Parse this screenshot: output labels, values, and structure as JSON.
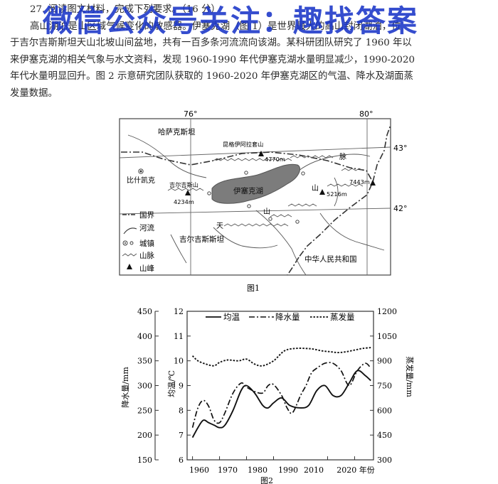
{
  "question": {
    "header": "27. 阅读图文材料，完成下列要求。（16 分）",
    "lines": [
      "高山湖泊是山区域气候变化的敏感器。伊塞克湖（图 1）是世界最大的高山封闭湖泊，位",
      "于吉尔吉斯斯坦天山北坡山间盆地，共有一百多条河流流向该湖。某科研团队研究了 1960 年以",
      "来伊塞克湖的相关气象与水文资料，发现 1960-1990 年代伊塞克湖水量明显减少，1990-2020",
      "年代水量明显回升。图 2 示意研究团队获取的 1960-2020 年伊塞克湖区的气温、降水及湖面蒸",
      "发量数据。"
    ]
  },
  "watermark": "微信公众号关注：趣找答案",
  "map": {
    "caption": "图1",
    "longitudes": [
      "76°",
      "80°"
    ],
    "latitudes": [
      "43°",
      "42°"
    ],
    "countries": {
      "kazakhstan": "哈萨克斯坦",
      "kyrgyzstan": "吉尔吉斯斯坦",
      "china": "中华人民共和国"
    },
    "lake": "伊塞克湖",
    "city": "比什凯克",
    "peaks": [
      {
        "name": "昆格伊阿拉套山",
        "elevation": "4770m"
      },
      {
        "name": "吉尔吉斯山",
        "elevation": "4234m"
      },
      {
        "name": "",
        "elevation": "5216m"
      },
      {
        "name": "",
        "elevation": "7443m"
      }
    ],
    "range_chars": [
      "天",
      "山",
      "山",
      "脉"
    ],
    "legend": [
      "国界",
      "河流",
      "城镇",
      "山脉",
      "山峰"
    ]
  },
  "chart_data": {
    "type": "line",
    "caption": "图2",
    "legend": [
      "均温",
      "降水量",
      "蒸发量"
    ],
    "x_ticks": [
      "1960",
      "1970",
      "1980",
      "1990",
      "2010",
      "2020 年份"
    ],
    "xlim": [
      1958,
      2027
    ],
    "axes": {
      "left": {
        "label": "降水量/mm",
        "ticks": [
          "450",
          "400",
          "350",
          "300",
          "250",
          "200",
          "150"
        ],
        "range": [
          150,
          450
        ]
      },
      "inner": {
        "label": "均温/℃",
        "ticks": [
          "12",
          "11",
          "10",
          "9",
          "8",
          "7",
          "6"
        ],
        "range": [
          6,
          12
        ]
      },
      "right": {
        "label": "蒸发量/mm",
        "ticks": [
          "1200",
          "1050",
          "900",
          "750",
          "600",
          "450",
          "300"
        ],
        "range": [
          300,
          1200
        ]
      }
    },
    "series": [
      {
        "name": "均温",
        "axis": "inner",
        "style": "solid",
        "x": [
          1960,
          1962,
          1964,
          1966,
          1968,
          1970,
          1972,
          1975,
          1978,
          1980,
          1983,
          1986,
          1988,
          1990,
          1993,
          1996,
          2000,
          2003,
          2006,
          2009,
          2012,
          2015,
          2018,
          2021,
          2024,
          2026
        ],
        "y": [
          6.9,
          7.3,
          7.6,
          7.5,
          7.4,
          7.3,
          7.4,
          8.0,
          8.8,
          9.0,
          8.7,
          8.2,
          8.1,
          8.3,
          8.5,
          8.2,
          8.1,
          8.2,
          8.8,
          9.0,
          8.6,
          8.6,
          9.1,
          9.6,
          9.4,
          9.2
        ]
      },
      {
        "name": "降水量",
        "axis": "left",
        "style": "dashdot",
        "x": [
          1960,
          1962,
          1964,
          1966,
          1968,
          1970,
          1972,
          1975,
          1978,
          1980,
          1983,
          1986,
          1988,
          1990,
          1993,
          1995,
          1997,
          2000,
          2002,
          2004,
          2006,
          2009,
          2012,
          2015,
          2018,
          2021,
          2024,
          2026
        ],
        "y": [
          215,
          255,
          270,
          258,
          230,
          225,
          245,
          285,
          305,
          297,
          288,
          285,
          300,
          302,
          280,
          255,
          245,
          280,
          300,
          325,
          335,
          345,
          345,
          330,
          300,
          330,
          345,
          335
        ]
      },
      {
        "name": "蒸发量",
        "axis": "right",
        "style": "dotted",
        "x": [
          1960,
          1962,
          1965,
          1968,
          1970,
          1973,
          1977,
          1980,
          1983,
          1986,
          1990,
          1994,
          1998,
          2002,
          2005,
          2008,
          2011,
          2014,
          2017,
          2020,
          2023,
          2026
        ],
        "y": [
          930,
          900,
          880,
          870,
          890,
          905,
          900,
          910,
          880,
          870,
          900,
          960,
          975,
          975,
          970,
          960,
          955,
          950,
          955,
          965,
          975,
          980
        ]
      }
    ]
  }
}
